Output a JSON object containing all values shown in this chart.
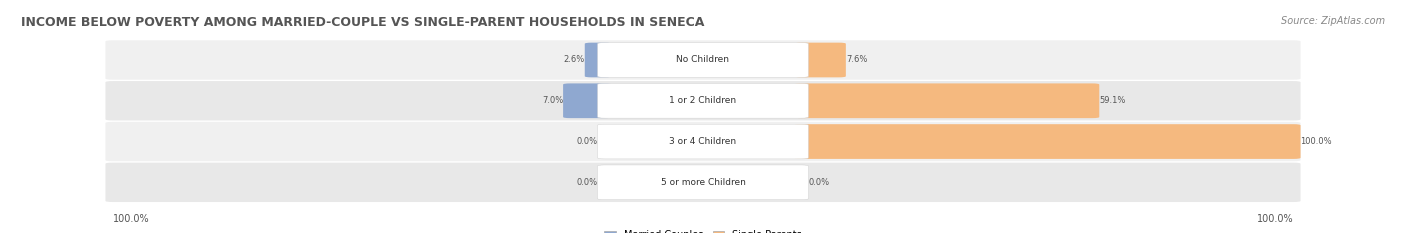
{
  "title": "INCOME BELOW POVERTY AMONG MARRIED-COUPLE VS SINGLE-PARENT HOUSEHOLDS IN SENECA",
  "source": "Source: ZipAtlas.com",
  "categories": [
    "No Children",
    "1 or 2 Children",
    "3 or 4 Children",
    "5 or more Children"
  ],
  "married_values": [
    2.6,
    7.0,
    0.0,
    0.0
  ],
  "single_values": [
    7.6,
    59.1,
    100.0,
    0.0
  ],
  "married_color": "#8FA8D0",
  "single_color": "#F5B97F",
  "row_bg_colors": [
    "#F0F0F0",
    "#E8E8E8",
    "#F0F0F0",
    "#E8E8E8"
  ],
  "title_fontsize": 9,
  "source_fontsize": 7,
  "axis_label_left": "100.0%",
  "axis_label_right": "100.0%",
  "max_val": 100.0,
  "figsize": [
    14.06,
    2.33
  ],
  "dpi": 100
}
